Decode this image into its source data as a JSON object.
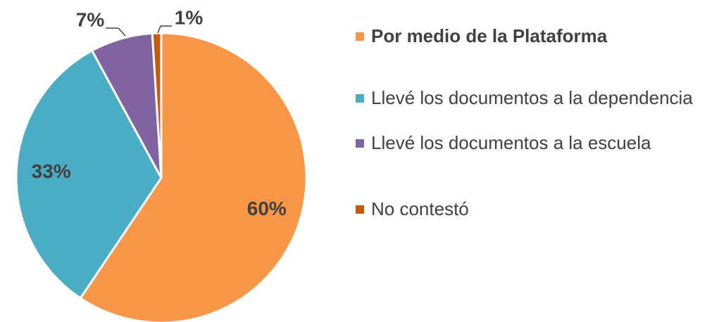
{
  "chart_data": {
    "type": "pie",
    "categories": [
      "Por medio de la Plataforma",
      "Llevé los documentos a la dependencia",
      "Llevé los documentos a la escuela",
      "No contestó"
    ],
    "values": [
      60,
      33,
      7,
      1
    ],
    "value_labels": [
      "60%",
      "33%",
      "7%",
      "1%"
    ],
    "colors": [
      "#f79646",
      "#4bacc6",
      "#8064a2",
      "#c55a11"
    ],
    "legend": "right"
  }
}
